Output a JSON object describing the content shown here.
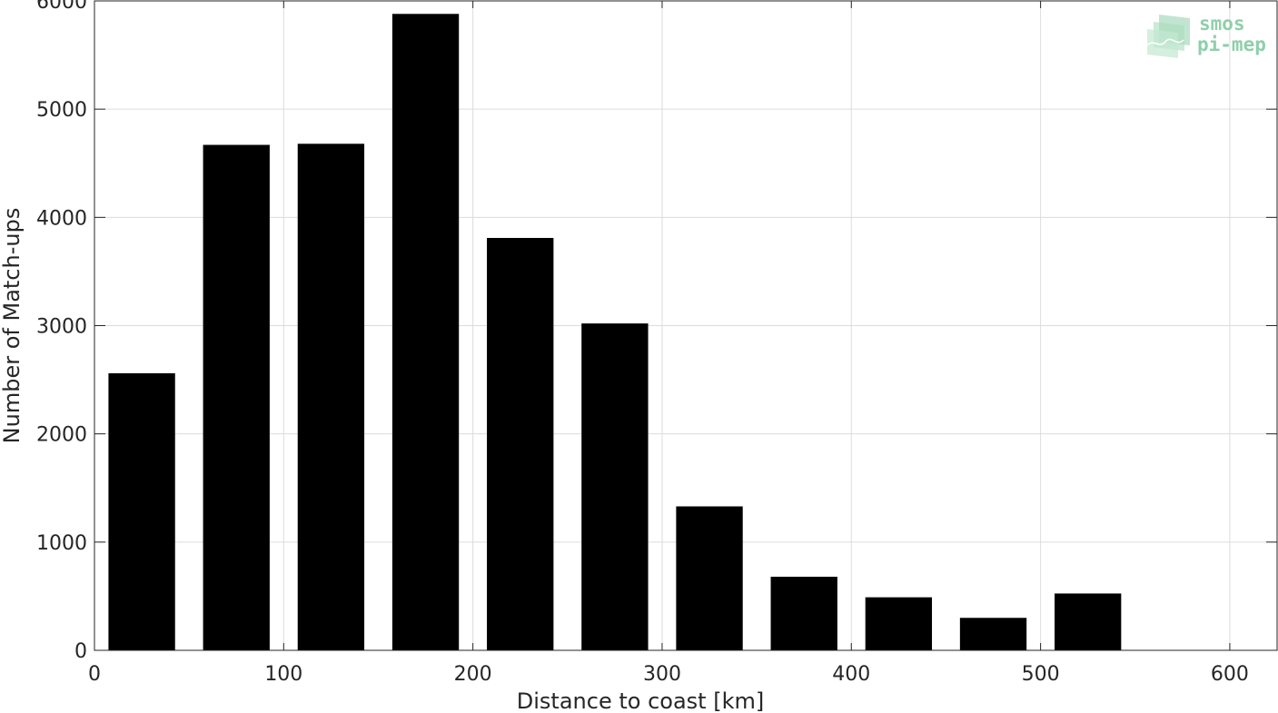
{
  "chart_data": {
    "type": "bar",
    "x": [
      25,
      75,
      125,
      175,
      225,
      275,
      325,
      375,
      425,
      475,
      525
    ],
    "values": [
      2560,
      4670,
      4680,
      5880,
      3810,
      3020,
      1330,
      680,
      490,
      300,
      525
    ],
    "bar_color": "#000000",
    "xlabel": "Distance to coast [km]",
    "ylabel": "Number of Match-ups",
    "xlim": [
      0,
      625
    ],
    "ylim": [
      0,
      6000
    ],
    "xticks": [
      0,
      100,
      200,
      300,
      400,
      500,
      600
    ],
    "yticks": [
      0,
      1000,
      2000,
      3000,
      4000,
      5000,
      6000
    ],
    "grid": true
  },
  "logo": {
    "line1": "smos",
    "line2": "pi-mep",
    "color": "#8fcfab"
  }
}
